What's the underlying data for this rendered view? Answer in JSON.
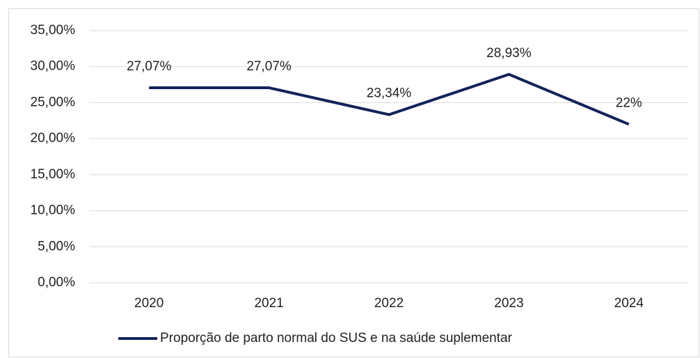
{
  "chart_data": {
    "type": "line",
    "categories": [
      "2020",
      "2021",
      "2022",
      "2023",
      "2024"
    ],
    "series": [
      {
        "name": "Proporção de parto normal do SUS e na saúde suplementar",
        "color": "#13235a",
        "values": [
          27.07,
          27.07,
          23.34,
          28.93,
          22
        ],
        "value_labels": [
          "27,07%",
          "27,07%",
          "23,34%",
          "28,93%",
          "22%"
        ]
      }
    ],
    "ylim": [
      0,
      35
    ],
    "yticks": [
      {
        "value": 0,
        "label": "0,00%"
      },
      {
        "value": 5,
        "label": "5,00%"
      },
      {
        "value": 10,
        "label": "10,00%"
      },
      {
        "value": 15,
        "label": "15,00%"
      },
      {
        "value": 20,
        "label": "20,00%"
      },
      {
        "value": 25,
        "label": "25,00%"
      },
      {
        "value": 30,
        "label": "30,00%"
      },
      {
        "value": 35,
        "label": "35,00%"
      }
    ],
    "grid": true,
    "legend": "bottom"
  }
}
